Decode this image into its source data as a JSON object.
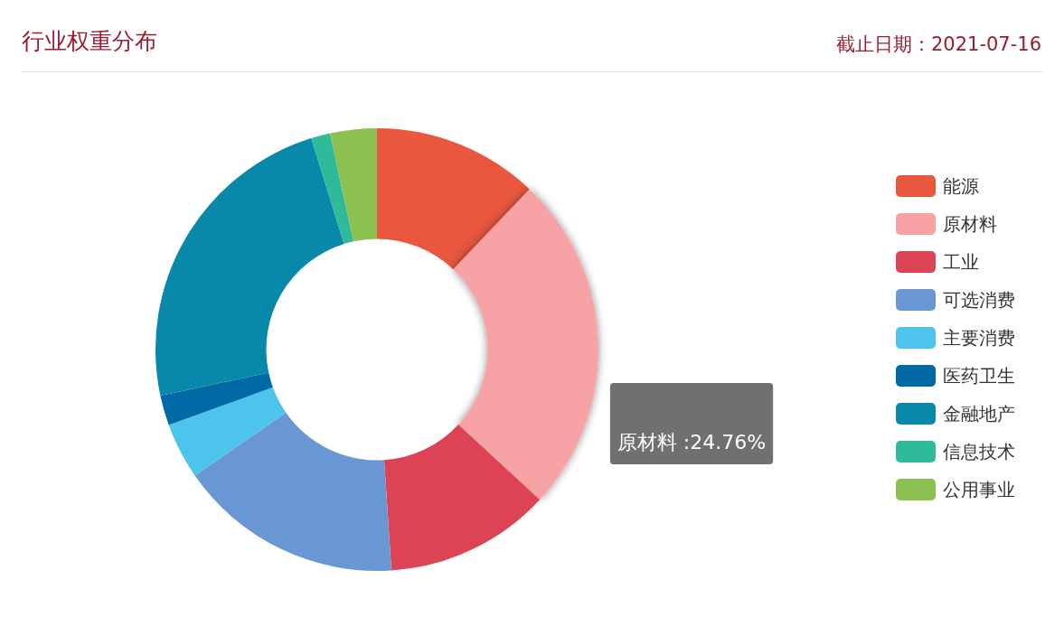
{
  "chart_data": {
    "type": "donut",
    "title": "行业权重分布",
    "subtitle": "截止日期：2021-07-16",
    "categories": [
      "能源",
      "原材料",
      "工业",
      "可选消费",
      "主要消费",
      "医药卫生",
      "金融地产",
      "信息技术",
      "公用事业"
    ],
    "values": [
      12.1,
      24.76,
      12.1,
      16.4,
      4.1,
      2.2,
      23.54,
      1.4,
      3.4
    ],
    "colors": [
      "#e8573e",
      "#f7a2a4",
      "#dc4355",
      "#6897d3",
      "#4dc4ec",
      "#0069a6",
      "#0889a9",
      "#2fbb9a",
      "#8cc151"
    ],
    "value_labels": [
      null,
      "原材料 :24.76%",
      null,
      null,
      null,
      null,
      null,
      null,
      null
    ],
    "legend": "right"
  }
}
